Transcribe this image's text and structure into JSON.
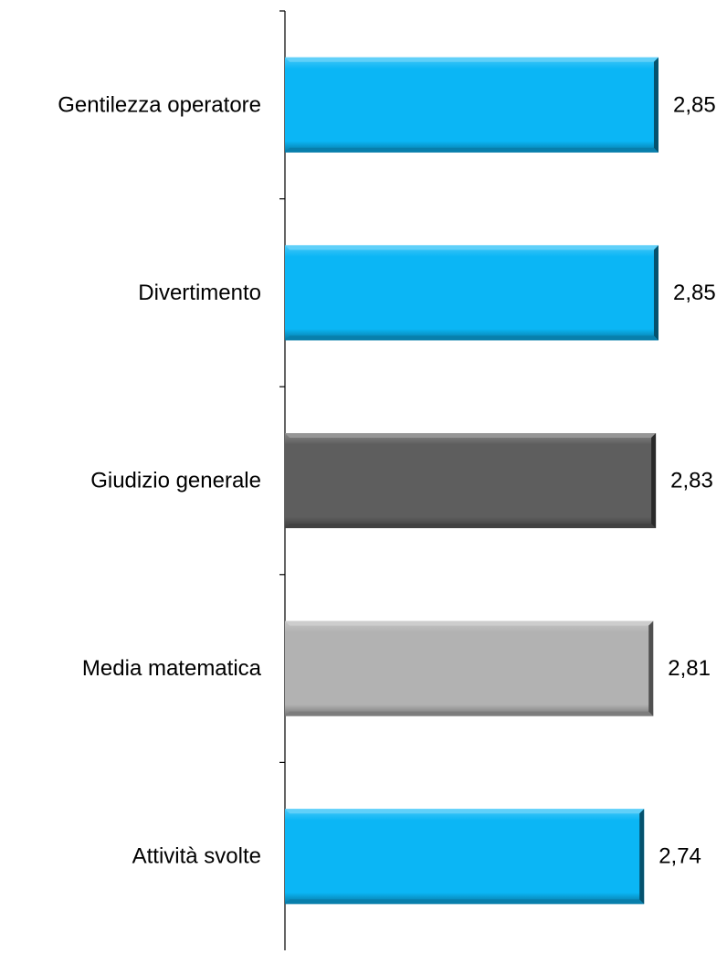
{
  "chart_data": {
    "type": "bar",
    "orientation": "horizontal",
    "categories": [
      "Gentilezza operatore",
      "Divertimento",
      "Giudizio generale",
      "Media matematica",
      "Attività svolte"
    ],
    "values": [
      2.85,
      2.85,
      2.83,
      2.81,
      2.74
    ],
    "value_labels": [
      "2,85",
      "2,85",
      "2,83",
      "2,81",
      "2,74"
    ],
    "bar_colors": [
      "#0bb6f5",
      "#0bb6f5",
      "#5e5e5e",
      "#b2b2b2",
      "#0bb6f5"
    ],
    "title": "",
    "xlabel": "",
    "ylabel": "",
    "xlim": [
      0,
      3
    ],
    "grid": false,
    "legend": "none"
  }
}
